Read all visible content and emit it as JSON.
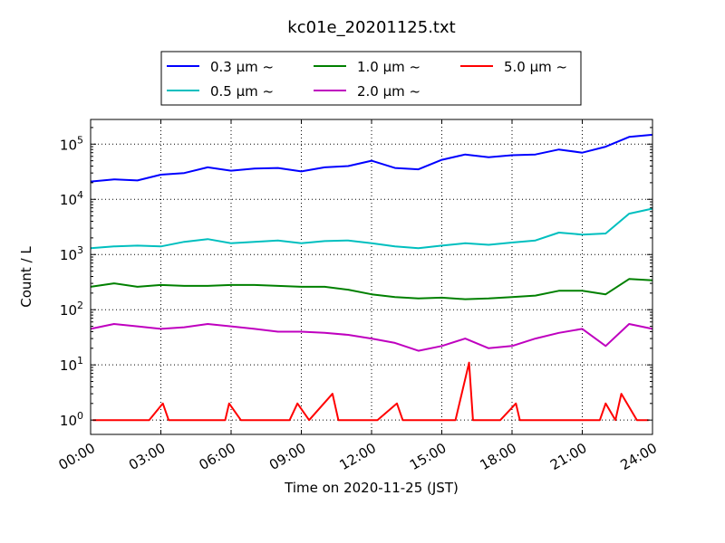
{
  "chart_data": {
    "type": "line",
    "title": "kc01e_20201125.txt",
    "xlabel": "Time on 2020-11-25 (JST)",
    "ylabel": "Count / L",
    "yscale": "log",
    "ylim": [
      0.55,
      280000
    ],
    "xlim": [
      "00:00",
      "24:00"
    ],
    "x_ticks": [
      "00:00",
      "03:00",
      "06:00",
      "09:00",
      "12:00",
      "15:00",
      "18:00",
      "21:00",
      "24:00"
    ],
    "y_ticks": [
      {
        "value": 1,
        "base": "10",
        "exp": "0"
      },
      {
        "value": 10,
        "base": "10",
        "exp": "1"
      },
      {
        "value": 100,
        "base": "10",
        "exp": "2"
      },
      {
        "value": 1000,
        "base": "10",
        "exp": "3"
      },
      {
        "value": 10000,
        "base": "10",
        "exp": "4"
      },
      {
        "value": 100000,
        "base": "10",
        "exp": "5"
      }
    ],
    "grid": true,
    "legend": {
      "position": "top-center",
      "columns": 3
    },
    "series": [
      {
        "name": "0.3 μm  ~",
        "color": "#0000ff",
        "x": [
          "00:00",
          "01:00",
          "02:00",
          "03:00",
          "04:00",
          "05:00",
          "06:00",
          "07:00",
          "08:00",
          "09:00",
          "10:00",
          "11:00",
          "12:00",
          "13:00",
          "14:00",
          "15:00",
          "16:00",
          "17:00",
          "18:00",
          "19:00",
          "20:00",
          "21:00",
          "22:00",
          "23:00",
          "24:00"
        ],
        "y": [
          21000,
          23000,
          22000,
          28000,
          30000,
          38000,
          33000,
          36000,
          37000,
          32000,
          38000,
          40000,
          50000,
          37000,
          35000,
          52000,
          65000,
          58000,
          63000,
          65000,
          80000,
          70000,
          90000,
          135000,
          148000
        ]
      },
      {
        "name": "0.5 μm  ~",
        "color": "#00bfbf",
        "x": [
          "00:00",
          "01:00",
          "02:00",
          "03:00",
          "04:00",
          "05:00",
          "06:00",
          "07:00",
          "08:00",
          "09:00",
          "10:00",
          "11:00",
          "12:00",
          "13:00",
          "14:00",
          "15:00",
          "16:00",
          "17:00",
          "18:00",
          "19:00",
          "20:00",
          "21:00",
          "22:00",
          "23:00",
          "24:00"
        ],
        "y": [
          1300,
          1400,
          1450,
          1400,
          1700,
          1900,
          1600,
          1700,
          1800,
          1600,
          1750,
          1800,
          1600,
          1400,
          1300,
          1450,
          1600,
          1500,
          1650,
          1800,
          2500,
          2300,
          2400,
          5500,
          6800
        ]
      },
      {
        "name": "1.0 μm  ~",
        "color": "#008000",
        "x": [
          "00:00",
          "01:00",
          "02:00",
          "03:00",
          "04:00",
          "05:00",
          "06:00",
          "07:00",
          "08:00",
          "09:00",
          "10:00",
          "11:00",
          "12:00",
          "13:00",
          "14:00",
          "15:00",
          "16:00",
          "17:00",
          "18:00",
          "19:00",
          "20:00",
          "21:00",
          "22:00",
          "23:00",
          "24:00"
        ],
        "y": [
          260,
          300,
          260,
          280,
          270,
          270,
          280,
          280,
          270,
          260,
          260,
          230,
          190,
          170,
          160,
          165,
          155,
          160,
          170,
          180,
          220,
          220,
          190,
          360,
          340
        ]
      },
      {
        "name": "2.0 μm  ~",
        "color": "#bf00bf",
        "x": [
          "00:00",
          "01:00",
          "02:00",
          "03:00",
          "04:00",
          "05:00",
          "06:00",
          "07:00",
          "08:00",
          "09:00",
          "10:00",
          "11:00",
          "12:00",
          "13:00",
          "14:00",
          "15:00",
          "16:00",
          "17:00",
          "18:00",
          "19:00",
          "20:00",
          "21:00",
          "22:00",
          "23:00",
          "24:00"
        ],
        "y": [
          45,
          55,
          50,
          45,
          48,
          55,
          50,
          45,
          40,
          40,
          38,
          35,
          30,
          25,
          18,
          22,
          30,
          20,
          22,
          30,
          38,
          45,
          22,
          55,
          45
        ]
      },
      {
        "name": "5.0 μm  ~",
        "color": "#ff0000",
        "x": [
          "00:05",
          "00:40",
          "01:20",
          "01:30",
          "01:45",
          "02:30",
          "03:05",
          "03:20",
          "03:50",
          "04:30",
          "05:00",
          "05:35",
          "05:45",
          "05:55",
          "06:25",
          "06:45",
          "07:00",
          "07:30",
          "08:00",
          "08:30",
          "08:50",
          "09:20",
          "10:20",
          "10:35",
          "11:05",
          "11:35",
          "12:05",
          "12:15",
          "13:05",
          "13:20",
          "13:50",
          "14:40",
          "15:35",
          "16:10",
          "16:20",
          "17:00",
          "17:30",
          "18:10",
          "18:20",
          "18:40",
          "19:10",
          "19:25",
          "20:05",
          "20:25",
          "20:55",
          "21:45",
          "22:00",
          "22:25",
          "22:40",
          "23:20",
          "23:50"
        ],
        "y": [
          1,
          1,
          1,
          1,
          1,
          1,
          2,
          1,
          1,
          1,
          1,
          1,
          1,
          2,
          1,
          1,
          1,
          1,
          1,
          1,
          2,
          1,
          3,
          1,
          1,
          1,
          1,
          1,
          2,
          1,
          1,
          1,
          1,
          11,
          1,
          1,
          1,
          2,
          1,
          1,
          1,
          1,
          1,
          1,
          1,
          1,
          2,
          1,
          3,
          1,
          1
        ]
      }
    ]
  }
}
